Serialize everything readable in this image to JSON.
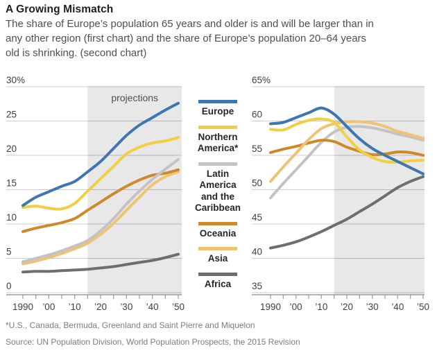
{
  "header": {
    "title": "A Growing Mismatch",
    "subtitle": "The share of Europe’s population 65 years and older is and will be larger than in\nany other region (first chart) and the share of Europe’s population 20–64 years\nold is shrinking. (second chart)"
  },
  "legend": {
    "items": [
      {
        "id": "europe",
        "label": "Europe",
        "color": "#3E76B0"
      },
      {
        "id": "northern-america",
        "label": "Northern\nAmerica*",
        "color": "#F1CF43"
      },
      {
        "id": "latin-america",
        "label": "Latin\nAmerica\nand the\nCaribbean",
        "color": "#C3C3C3"
      },
      {
        "id": "oceania",
        "label": "Oceania",
        "color": "#CE8A2A"
      },
      {
        "id": "asia",
        "label": "Asia",
        "color": "#F0C274"
      },
      {
        "id": "africa",
        "label": "Africa",
        "color": "#6E6E6E"
      }
    ]
  },
  "footnote": "*U.S., Canada, Bermuda, Greenland and Saint Pierre and Miquelon",
  "source": "Source: UN Population Division, World Population Prospects, the 2015 Revision",
  "colors": {
    "shading": "#E8E8E8",
    "gridline_light": "#CCCCCC",
    "gridline_dark": "#B3B6BB",
    "axis": "#9B9B9B",
    "axis_text": "#3F3F3F",
    "annotation_text": "#4F4F4F"
  },
  "chart_data": [
    {
      "type": "line",
      "name": "share-65-and-older",
      "annotation": "projections",
      "projection_start": 2015,
      "ylim": [
        0,
        30
      ],
      "yticks": [
        0,
        5,
        10,
        15,
        20,
        25,
        30
      ],
      "ytick_labels": [
        "0",
        "5",
        "10",
        "15",
        "20",
        "25",
        "30%"
      ],
      "x": [
        1990,
        1995,
        2000,
        2005,
        2010,
        2015,
        2020,
        2025,
        2030,
        2035,
        2040,
        2045,
        2050
      ],
      "xtick_years": [
        1990,
        2000,
        2010,
        2020,
        2030,
        2040,
        2050
      ],
      "xtick_labels": [
        "1990",
        "’00",
        "’10",
        "’20",
        "’30",
        "’40",
        "’50"
      ],
      "series": [
        {
          "name": "Asia",
          "color": "#F0C274",
          "values": [
            4.2,
            4.6,
            5.1,
            5.7,
            6.4,
            7.2,
            8.5,
            10.1,
            12.0,
            13.9,
            15.7,
            16.9,
            17.6
          ]
        },
        {
          "name": "Oceania",
          "color": "#CE8A2A",
          "values": [
            8.9,
            9.4,
            9.8,
            10.2,
            10.8,
            12.0,
            13.2,
            14.4,
            15.5,
            16.4,
            17.1,
            17.4,
            17.9
          ]
        },
        {
          "name": "Latin America and the Caribbean",
          "color": "#C3C3C3",
          "values": [
            4.5,
            5.0,
            5.5,
            6.1,
            6.8,
            7.6,
            9.0,
            10.8,
            12.9,
            14.8,
            16.5,
            18.0,
            19.4
          ]
        },
        {
          "name": "Africa",
          "color": "#6E6E6E",
          "values": [
            3.0,
            3.1,
            3.1,
            3.2,
            3.3,
            3.4,
            3.6,
            3.8,
            4.1,
            4.4,
            4.7,
            5.1,
            5.6
          ]
        },
        {
          "name": "Northern America",
          "color": "#F1CF43",
          "values": [
            12.4,
            12.6,
            12.3,
            12.2,
            13.0,
            14.8,
            16.6,
            18.4,
            20.2,
            21.2,
            21.8,
            22.1,
            22.6
          ]
        },
        {
          "name": "Europe",
          "color": "#3E76B0",
          "values": [
            12.7,
            13.9,
            14.7,
            15.5,
            16.2,
            17.6,
            19.1,
            21.0,
            22.9,
            24.4,
            25.5,
            26.6,
            27.6
          ]
        }
      ]
    },
    {
      "type": "line",
      "name": "share-20-to-64",
      "annotation": "",
      "projection_start": 2015,
      "ylim": [
        35,
        65
      ],
      "yticks": [
        35,
        40,
        45,
        50,
        55,
        60,
        65
      ],
      "ytick_labels": [
        "35",
        "40",
        "45",
        "50",
        "55",
        "60",
        "65%"
      ],
      "x": [
        1990,
        1995,
        2000,
        2005,
        2010,
        2015,
        2020,
        2025,
        2030,
        2035,
        2040,
        2045,
        2050
      ],
      "xtick_years": [
        1990,
        2000,
        2010,
        2020,
        2030,
        2040,
        2050
      ],
      "xtick_labels": [
        "1990",
        "’00",
        "’10",
        "’20",
        "’30",
        "’40",
        "’50"
      ],
      "series": [
        {
          "name": "Latin America and the Caribbean",
          "color": "#C3C3C3",
          "values": [
            48.8,
            50.9,
            52.9,
            54.9,
            56.9,
            58.4,
            59.1,
            59.2,
            59.0,
            58.6,
            58.1,
            57.7,
            57.2
          ]
        },
        {
          "name": "Oceania",
          "color": "#CE8A2A",
          "values": [
            55.4,
            55.9,
            56.3,
            56.8,
            57.2,
            57.0,
            56.2,
            55.6,
            55.1,
            55.2,
            55.5,
            55.4,
            55.0
          ]
        },
        {
          "name": "Asia",
          "color": "#F0C274",
          "values": [
            51.2,
            53.3,
            55.3,
            57.3,
            58.9,
            59.6,
            59.9,
            59.9,
            59.7,
            59.2,
            58.5,
            58.0,
            57.5
          ]
        },
        {
          "name": "Africa",
          "color": "#6E6E6E",
          "values": [
            41.5,
            41.9,
            42.4,
            43.1,
            43.9,
            44.8,
            45.7,
            46.8,
            47.9,
            49.1,
            50.3,
            51.2,
            51.9
          ]
        },
        {
          "name": "Northern America",
          "color": "#F1CF43",
          "values": [
            58.8,
            58.7,
            59.5,
            60.1,
            60.3,
            59.8,
            57.7,
            55.8,
            54.7,
            54.1,
            54.0,
            54.2,
            54.3
          ]
        },
        {
          "name": "Europe",
          "color": "#3E76B0",
          "values": [
            59.6,
            59.8,
            60.5,
            61.2,
            61.9,
            61.0,
            59.2,
            57.4,
            56.0,
            55.0,
            54.1,
            53.2,
            52.3
          ]
        }
      ]
    }
  ]
}
